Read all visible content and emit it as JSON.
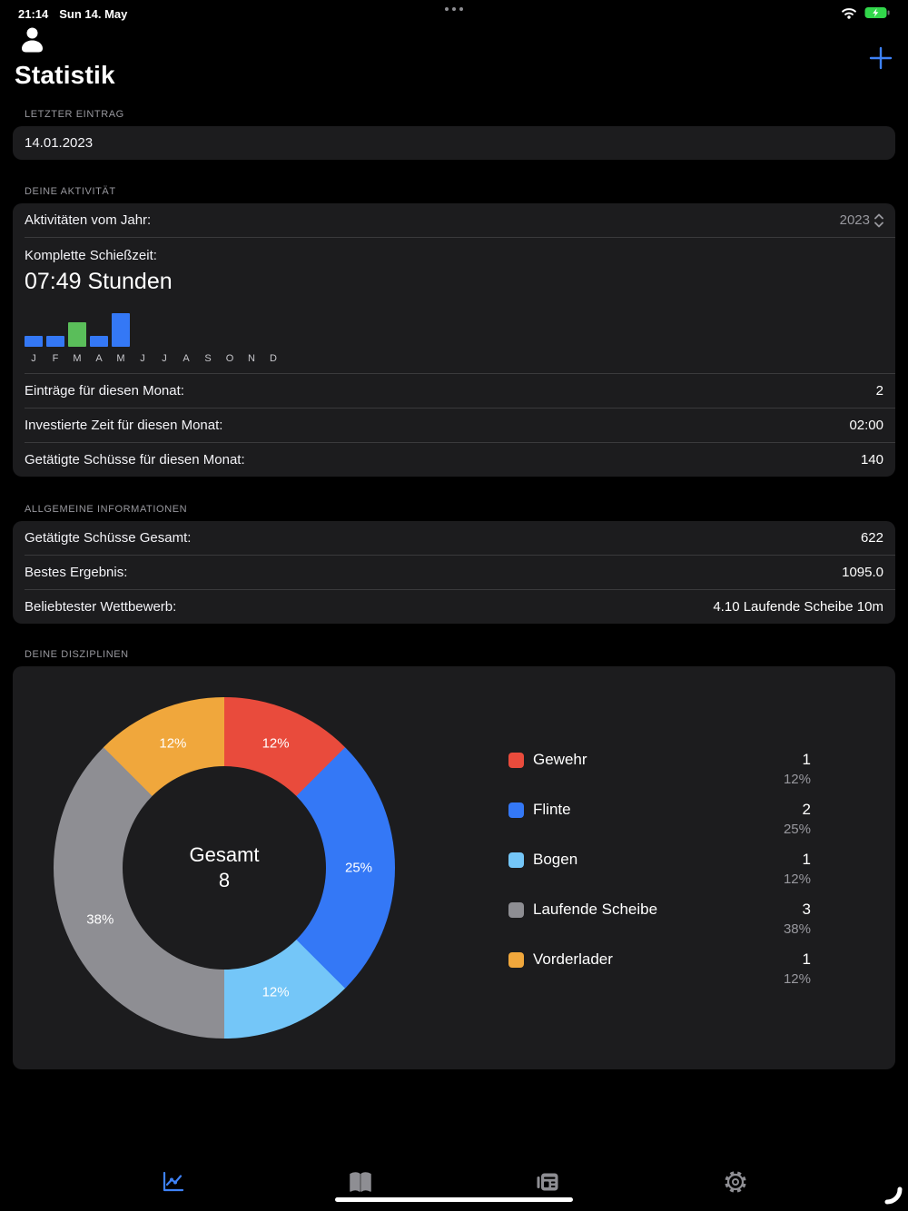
{
  "status_bar": {
    "time": "21:14",
    "date": "Sun 14. May"
  },
  "nav": {
    "title": "Statistik",
    "add_label": "+"
  },
  "last_entry": {
    "header": "LETZTER EINTRAG",
    "date": "14.01.2023"
  },
  "activity": {
    "header": "DEINE AKTIVITÄT",
    "year_label": "Aktivitäten vom Jahr:",
    "year_value": "2023",
    "total_time_label": "Komplette Schießzeit:",
    "total_time_value": "07:49 Stunden",
    "rows": [
      {
        "label": "Einträge für diesen Monat:",
        "value": "2"
      },
      {
        "label": "Investierte Zeit für diesen Monat:",
        "value": "02:00"
      },
      {
        "label": "Getätigte Schüsse für diesen Monat:",
        "value": "140"
      }
    ]
  },
  "general": {
    "header": "ALLGEMEINE INFORMATIONEN",
    "rows": [
      {
        "label": "Getätigte Schüsse Gesamt:",
        "value": "622"
      },
      {
        "label": "Bestes Ergebnis:",
        "value": "1095.0"
      },
      {
        "label": "Beliebtester Wettbewerb:",
        "value": "4.10 Laufende Scheibe 10m"
      }
    ]
  },
  "disciplines": {
    "header": "DEINE DISZIPLINEN"
  },
  "chart_data": [
    {
      "type": "bar",
      "categories": [
        "J",
        "F",
        "M",
        "A",
        "M",
        "J",
        "J",
        "A",
        "S",
        "O",
        "N",
        "D"
      ],
      "values": [
        1,
        1,
        2.2,
        1,
        3,
        0,
        0,
        0,
        0,
        0,
        0,
        0
      ],
      "ymax": 3,
      "bar_color": "#3478F6",
      "highlight_index": 2,
      "highlight_color": "#5ABE5A",
      "grid": false
    },
    {
      "type": "pie",
      "labels": [
        "Gewehr",
        "Flinte",
        "Bogen",
        "Laufende Scheibe",
        "Vorderlader"
      ],
      "values": [
        1,
        2,
        1,
        3,
        1
      ],
      "percent_labels": [
        "12%",
        "25%",
        "12%",
        "38%",
        "12%"
      ],
      "colors": [
        "#E94B3C",
        "#3478F6",
        "#74C6F8",
        "#8E8E93",
        "#F0A73C"
      ],
      "center_label": "Gesamt",
      "center_value": "8",
      "legend_position": "right"
    }
  ],
  "tab_bar": {
    "tabs": [
      {
        "icon": "chart-line-icon",
        "active": true
      },
      {
        "icon": "book-icon",
        "active": false
      },
      {
        "icon": "newspaper-icon",
        "active": false
      },
      {
        "icon": "gear-icon",
        "active": false
      }
    ]
  },
  "colors": {
    "accent_blue": "#3E82F7",
    "battery_green": "#32D74B",
    "card_bg": "#1C1C1E"
  }
}
